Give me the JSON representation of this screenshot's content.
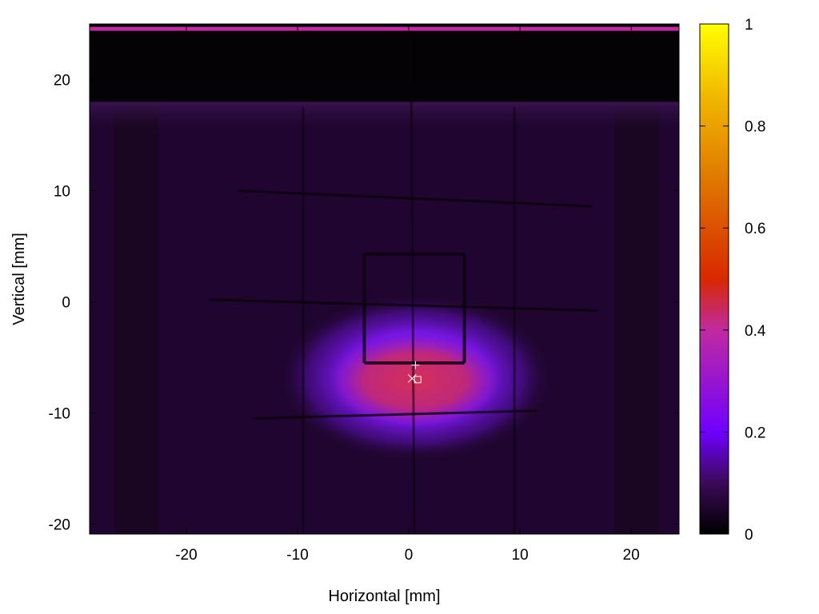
{
  "chart_data": {
    "type": "heatmap",
    "title": "",
    "xlabel": "Horizontal [mm]",
    "ylabel": "Vertical [mm]",
    "xlim": [
      -28.7,
      24.3
    ],
    "ylim": [
      -20.9,
      25
    ],
    "x_ticks": [
      {
        "value": -20,
        "label": "-20"
      },
      {
        "value": -10,
        "label": "-10"
      },
      {
        "value": 0,
        "label": "0"
      },
      {
        "value": 10,
        "label": "10"
      },
      {
        "value": 20,
        "label": "20"
      }
    ],
    "y_ticks": [
      {
        "value": 20,
        "label": "20"
      },
      {
        "value": 10,
        "label": "10"
      },
      {
        "value": 0,
        "label": "0"
      },
      {
        "value": -10,
        "label": "-10"
      },
      {
        "value": -20,
        "label": "-20"
      }
    ],
    "colorbar": {
      "range": [
        0,
        1
      ],
      "ticks": [
        {
          "value": 1,
          "label": "1"
        },
        {
          "value": 0.8,
          "label": "0.8"
        },
        {
          "value": 0.6,
          "label": "0.6"
        },
        {
          "value": 0.4,
          "label": "0.4"
        },
        {
          "value": 0.2,
          "label": "0.2"
        },
        {
          "value": 0,
          "label": "0"
        }
      ],
      "colormap": [
        {
          "value": 0,
          "color": "#000000"
        },
        {
          "value": 0.1,
          "color": "#3a0a58"
        },
        {
          "value": 0.2,
          "color": "#7000ff"
        },
        {
          "value": 0.4,
          "color": "#c02aa0"
        },
        {
          "value": 0.5,
          "color": "#d82800"
        },
        {
          "value": 0.7,
          "color": "#e07a00"
        },
        {
          "value": 0.85,
          "color": "#f0b400"
        },
        {
          "value": 1,
          "color": "#ffff00"
        }
      ]
    },
    "features": {
      "background_level": 0.055,
      "dark_region_top_y": 18,
      "bright_strip_y": 24.6,
      "bright_strip_level": 0.4,
      "beam_spot": {
        "center_x": 0.6,
        "center_y": -6.8,
        "radius_x": 9,
        "radius_y": 5.5,
        "peak_level": 0.5
      },
      "markers": [
        {
          "symbol": "+",
          "x": 0.6,
          "y": -5.7
        },
        {
          "symbol": "x",
          "x": 0.3,
          "y": -6.9
        },
        {
          "symbol": "square",
          "x": 0.8,
          "y": -7.0
        }
      ]
    }
  }
}
